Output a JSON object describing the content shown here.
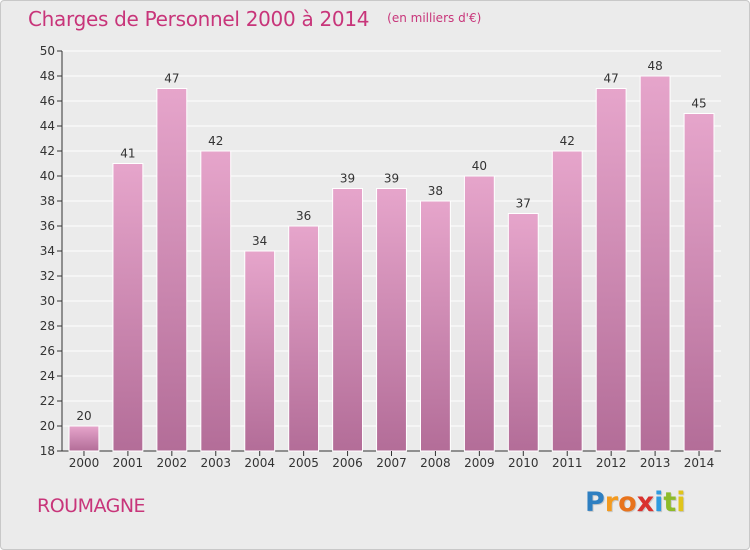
{
  "header": {
    "title": "Charges de Personnel 2000 à 2014",
    "subtitle": "(en milliers d'€)"
  },
  "footer": {
    "commune": "ROUMAGNE",
    "logo_letters": [
      "P",
      "r",
      "o",
      "x",
      "i",
      "t",
      "i"
    ],
    "logo_colors": [
      "#2e7fc1",
      "#f39a1f",
      "#e8731c",
      "#d9322f",
      "#2e9be0",
      "#8dbb2a",
      "#e0c41a"
    ]
  },
  "colors": {
    "bar_top": "#e6a5cb",
    "bar_bottom": "#b36d98",
    "bar_stroke": "#ffffff",
    "plot_background": "#ebebeb",
    "grid": "#ffffff",
    "axis": "#333333"
  },
  "chart_data": {
    "type": "bar",
    "title": "Charges de Personnel 2000 à 2014",
    "subtitle": "(en milliers d'€)",
    "xlabel": "",
    "ylabel": "",
    "categories": [
      "2000",
      "2001",
      "2002",
      "2003",
      "2004",
      "2005",
      "2006",
      "2007",
      "2008",
      "2009",
      "2010",
      "2011",
      "2012",
      "2013",
      "2014"
    ],
    "values": [
      20,
      41,
      47,
      42,
      34,
      36,
      39,
      39,
      38,
      40,
      37,
      42,
      47,
      48,
      45
    ],
    "ylim": [
      18,
      50
    ],
    "yticks": [
      18,
      20,
      22,
      24,
      26,
      28,
      30,
      32,
      34,
      36,
      38,
      40,
      42,
      44,
      46,
      48,
      50
    ],
    "grid": true,
    "legend": "none"
  }
}
